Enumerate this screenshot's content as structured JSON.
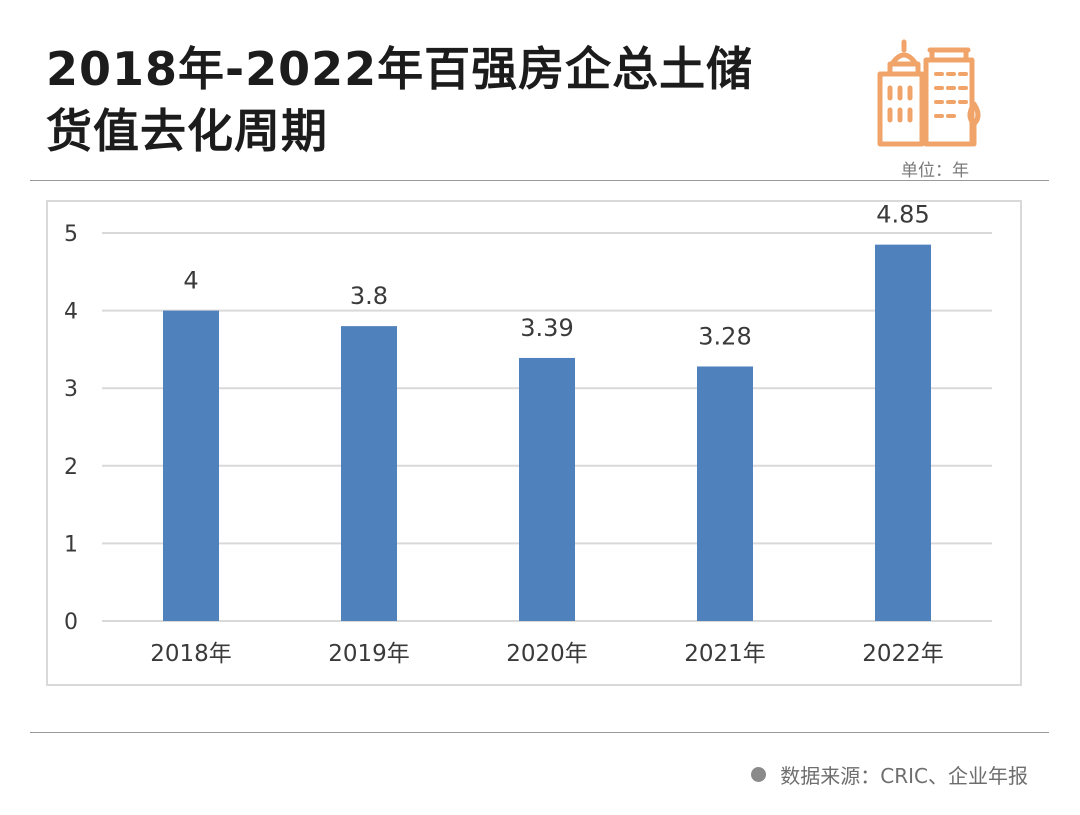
{
  "title": {
    "line1": "2018年-2022年百强房企总土储",
    "line2": "货值去化周期"
  },
  "unit_label": "单位：年",
  "source": "数据来源：CRIC、企业年报",
  "colors": {
    "bar": "#4f81bd",
    "icon": "#f0a46a",
    "title": "#1c1c1c",
    "grid": "#d9d9d9"
  },
  "icons": [
    "building-icon",
    "bullet-dot-icon"
  ],
  "chart_data": {
    "type": "bar",
    "categories": [
      "2018年",
      "2019年",
      "2020年",
      "2021年",
      "2022年"
    ],
    "values": [
      4,
      3.8,
      3.39,
      3.28,
      4.85
    ],
    "data_labels": [
      "4",
      "3.8",
      "3.39",
      "3.28",
      "4.85"
    ],
    "title": "",
    "xlabel": "",
    "ylabel": "",
    "ylim": [
      0,
      5
    ],
    "yticks": [
      "0",
      "1",
      "2",
      "3",
      "4",
      "5"
    ],
    "grid": true,
    "legend": "none"
  }
}
